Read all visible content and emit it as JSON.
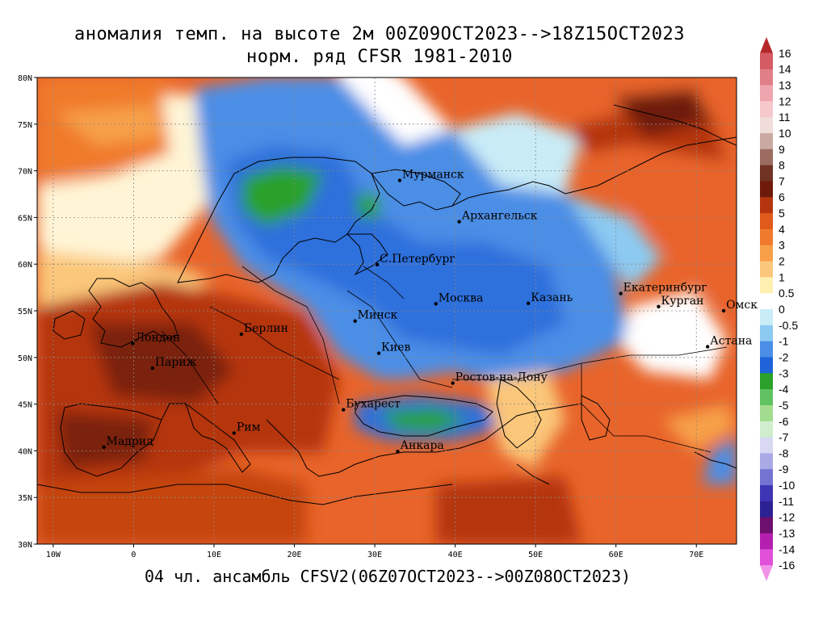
{
  "title_line1": "аномалия темп. на высоте 2м 00Z09OCT2023-->18Z15OCT2023",
  "title_line2": "норм. ряд CFSR 1981-2010",
  "footer": "04 чл. ансамбль CFSV2(06Z07OCT2023-->00Z08OCT2023)",
  "map": {
    "lon_range": [
      -12,
      75
    ],
    "lat_range": [
      30,
      80
    ],
    "lon_ticks": [
      -10,
      0,
      10,
      20,
      30,
      40,
      50,
      60,
      70
    ],
    "lon_tick_labels": [
      "10W",
      "0",
      "10E",
      "20E",
      "30E",
      "40E",
      "50E",
      "60E",
      "70E"
    ],
    "lat_ticks": [
      30,
      35,
      40,
      45,
      50,
      55,
      60,
      65,
      70,
      75,
      80
    ],
    "lat_tick_labels": [
      "30N",
      "35N",
      "40N",
      "45N",
      "50N",
      "55N",
      "60N",
      "65N",
      "70N",
      "75N",
      "80N"
    ],
    "gridlines": true
  },
  "cities": [
    {
      "name": "Мурманск",
      "lon": 33.1,
      "lat": 68.97
    },
    {
      "name": "Архангельск",
      "lon": 40.5,
      "lat": 64.55
    },
    {
      "name": "С.Петербург",
      "lon": 30.3,
      "lat": 59.95
    },
    {
      "name": "Москва",
      "lon": 37.6,
      "lat": 55.75
    },
    {
      "name": "Казань",
      "lon": 49.1,
      "lat": 55.8
    },
    {
      "name": "Екатеринбург",
      "lon": 60.6,
      "lat": 56.85
    },
    {
      "name": "Курган",
      "lon": 65.3,
      "lat": 55.45
    },
    {
      "name": "Омск",
      "lon": 73.4,
      "lat": 55.0
    },
    {
      "name": "Астана",
      "lon": 71.4,
      "lat": 51.15
    },
    {
      "name": "Минск",
      "lon": 27.55,
      "lat": 53.9
    },
    {
      "name": "Киев",
      "lon": 30.5,
      "lat": 50.45
    },
    {
      "name": "Берлин",
      "lon": 13.4,
      "lat": 52.5
    },
    {
      "name": "Лондон",
      "lon": -0.1,
      "lat": 51.5
    },
    {
      "name": "Париж",
      "lon": 2.35,
      "lat": 48.85
    },
    {
      "name": "Ростов-на-Дону",
      "lon": 39.7,
      "lat": 47.25
    },
    {
      "name": "Бухарест",
      "lon": 26.1,
      "lat": 44.4
    },
    {
      "name": "Рим",
      "lon": 12.5,
      "lat": 41.9
    },
    {
      "name": "Мадрид",
      "lon": -3.7,
      "lat": 40.4
    },
    {
      "name": "Анкара",
      "lon": 32.85,
      "lat": 39.93
    }
  ],
  "colorbar": {
    "labels": [
      "16",
      "14",
      "13",
      "12",
      "11",
      "10",
      "9",
      "8",
      "7",
      "6",
      "5",
      "4",
      "3",
      "2",
      "1",
      "0.5",
      "0",
      "-0.5",
      "-1",
      "-2",
      "-3",
      "-4",
      "-5",
      "-6",
      "-7",
      "-8",
      "-9",
      "-10",
      "-11",
      "-12",
      "-13",
      "-14",
      "-16"
    ],
    "colors": [
      "#b5272b",
      "#d45a63",
      "#e07f88",
      "#eea5ad",
      "#f5c8cc",
      "#f0dcd9",
      "#c9a9a2",
      "#9c6c60",
      "#6f3223",
      "#6e1a0a",
      "#b5360e",
      "#e05a1b",
      "#f07a2b",
      "#f7a048",
      "#fbc77a",
      "#fff0b0",
      "#ffffff",
      "#c9ecf7",
      "#8ccaf2",
      "#4b8ee6",
      "#1e64d8",
      "#2aa12a",
      "#60c260",
      "#a2dc8e",
      "#d0eecd",
      "#d8d8f2",
      "#a9a9e6",
      "#7373d2",
      "#3e35b4",
      "#2d2294",
      "#6d0f6c",
      "#b51fb0",
      "#e050d8",
      "#ef92e8"
    ]
  }
}
